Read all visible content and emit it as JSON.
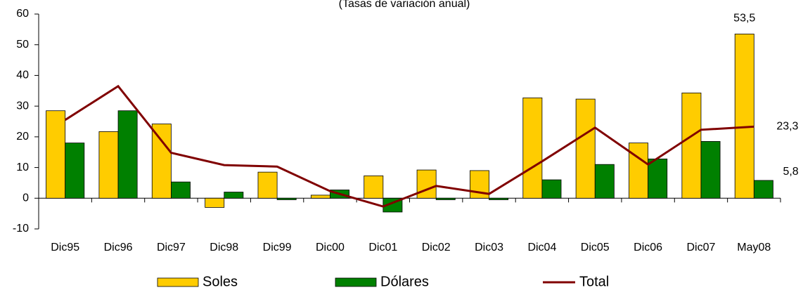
{
  "chart_data": {
    "type": "bar",
    "title": "(Tasas de variación anual)",
    "categories": [
      "Dic95",
      "Dic96",
      "Dic97",
      "Dic98",
      "Dic99",
      "Dic00",
      "Dic01",
      "Dic02",
      "Dic03",
      "Dic04",
      "Dic05",
      "Dic06",
      "Dic07",
      "May08"
    ],
    "series": [
      {
        "name": "Soles",
        "color": "#ffcc00",
        "type": "bar",
        "values": [
          28.5,
          21.7,
          24.2,
          -3,
          8.5,
          1,
          7.3,
          9.2,
          9,
          32.7,
          32.3,
          18,
          34.3,
          53.5
        ],
        "value_labels": [
          null,
          null,
          null,
          null,
          null,
          null,
          null,
          null,
          null,
          null,
          null,
          null,
          null,
          "53,5"
        ]
      },
      {
        "name": "Dólares",
        "color": "#008000",
        "type": "bar",
        "values": [
          18,
          28.5,
          5.3,
          2,
          -0.5,
          2.7,
          -4.5,
          -0.5,
          -0.5,
          6,
          11,
          12.8,
          18.5,
          5.8
        ],
        "value_labels": [
          null,
          null,
          null,
          null,
          null,
          null,
          null,
          null,
          null,
          null,
          null,
          null,
          null,
          "5,8"
        ]
      },
      {
        "name": "Total",
        "color": "#800000",
        "type": "line",
        "values": [
          25.5,
          36.5,
          14.8,
          10.8,
          10.3,
          2.3,
          -2.7,
          4,
          1.4,
          12,
          23,
          11,
          22.3,
          23.3
        ],
        "value_labels": [
          null,
          null,
          null,
          null,
          null,
          null,
          null,
          null,
          null,
          null,
          null,
          null,
          null,
          "23,3"
        ]
      }
    ],
    "ylim": [
      -10,
      60
    ],
    "yticks": [
      -10,
      0,
      10,
      20,
      30,
      40,
      50,
      60
    ],
    "grid": false,
    "legend": "bottom"
  }
}
